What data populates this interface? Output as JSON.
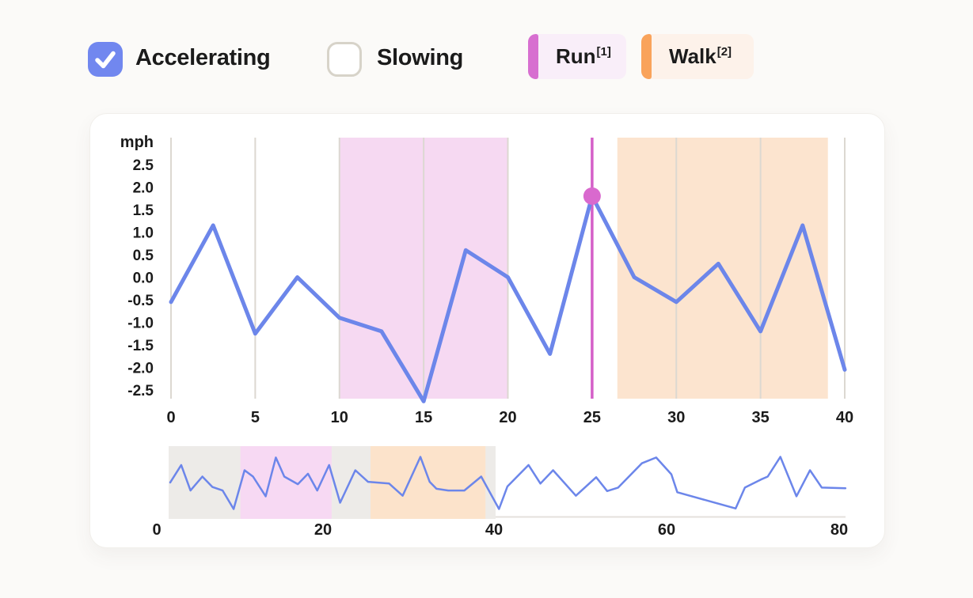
{
  "controls": {
    "accelerating": {
      "label": "Accelerating",
      "checked": true
    },
    "slowing": {
      "label": "Slowing",
      "checked": false
    },
    "legend": [
      {
        "label": "Run",
        "sup": "[1]"
      },
      {
        "label": "Walk",
        "sup": "[2]"
      }
    ]
  },
  "colors": {
    "page_bg": "#fbfaf8",
    "card_bg": "#ffffff",
    "text": "#1b1b1b",
    "checkbox_checked": "#7187ef",
    "checkbox_unchecked_border": "#d7d3c9",
    "run_accent": "#d76fd0",
    "run_chip_bg": "#f9eef9",
    "walk_accent": "#f9a35b",
    "walk_chip_bg": "#fdf2ea",
    "line_blue": "#6c86ea",
    "grid": "#dcd8d1",
    "region_run": "#f6d9f2",
    "region_walk": "#fce4cf",
    "highlight_line": "#d45fc8",
    "highlight_dot": "#d969ce",
    "brush_selection": "#edebe8",
    "brush_run": "#f7d9f3",
    "brush_walk": "#fce3cb",
    "brush_axis": "#e4e1dc"
  },
  "chart_data": [
    {
      "id": "main-speed-chart",
      "type": "line",
      "title": "",
      "xlabel": "",
      "ylabel": "mph",
      "x": [
        0,
        2.5,
        5,
        7.5,
        10,
        12.5,
        15,
        17.5,
        20,
        22.5,
        25,
        27.5,
        30,
        32.5,
        35,
        37.5,
        40
      ],
      "values": [
        -0.55,
        1.15,
        -1.25,
        0.0,
        -0.9,
        -1.2,
        -2.75,
        0.6,
        0.0,
        -1.7,
        1.8,
        0.0,
        -0.55,
        0.3,
        -1.2,
        1.15,
        -2.05
      ],
      "xticks": [
        0,
        5,
        10,
        15,
        20,
        25,
        30,
        35,
        40
      ],
      "yticks": [
        2.5,
        2.0,
        1.5,
        1.0,
        0.5,
        0.0,
        -0.5,
        -1.0,
        -1.5,
        -2.0,
        -2.5
      ],
      "xlim": [
        0,
        40
      ],
      "ylim": [
        -2.9,
        3.1
      ],
      "grid": "vertical-only",
      "line_color": "#6c86ea",
      "regions": [
        {
          "label": "Run",
          "from": 10,
          "to": 20,
          "color": "#f6d9f2"
        },
        {
          "label": "Walk",
          "from": 26.5,
          "to": 39,
          "color": "#fce4cf"
        }
      ],
      "highlight": {
        "x": 25,
        "y": 1.8,
        "dot_color": "#d969ce",
        "line_color": "#d45fc8"
      }
    },
    {
      "id": "overview-brush-chart",
      "type": "line",
      "role": "brush-overview",
      "xticks": [
        0,
        20,
        40,
        60,
        80
      ],
      "xlim": [
        0,
        80
      ],
      "line_color": "#6c86ea",
      "selection": {
        "from": 0,
        "to": 38.5
      },
      "regions": [
        {
          "label": "Run",
          "from": 8.3,
          "to": 19.1,
          "color": "#f7d9f3"
        },
        {
          "label": "Walk",
          "from": 23.7,
          "to": 37.3,
          "color": "#fce3cb"
        }
      ],
      "points": [
        [
          0,
          -0.4
        ],
        [
          1.3,
          1.1
        ],
        [
          2.4,
          -1.1
        ],
        [
          3.8,
          0.1
        ],
        [
          5,
          -0.8
        ],
        [
          6.2,
          -1.1
        ],
        [
          7.5,
          -2.7
        ],
        [
          8.8,
          0.65
        ],
        [
          9.8,
          0.1
        ],
        [
          11.3,
          -1.6
        ],
        [
          12.5,
          1.75
        ],
        [
          13.5,
          0.1
        ],
        [
          15.1,
          -0.55
        ],
        [
          16.3,
          0.35
        ],
        [
          17.4,
          -1.1
        ],
        [
          18.8,
          1.1
        ],
        [
          20.1,
          -2.15
        ],
        [
          21.9,
          0.65
        ],
        [
          23.4,
          -0.35
        ],
        [
          25.9,
          -0.5
        ],
        [
          27.5,
          -1.55
        ],
        [
          29.6,
          1.8
        ],
        [
          30.7,
          -0.35
        ],
        [
          31.5,
          -0.95
        ],
        [
          32.9,
          -1.1
        ],
        [
          34.8,
          -1.1
        ],
        [
          36.8,
          0.1
        ],
        [
          38.9,
          -2.7
        ],
        [
          39.9,
          -0.75
        ],
        [
          42.4,
          1.1
        ],
        [
          43.8,
          -0.5
        ],
        [
          45.3,
          0.65
        ],
        [
          48,
          -1.55
        ],
        [
          50.4,
          0.05
        ],
        [
          51.7,
          -1.15
        ],
        [
          53,
          -0.85
        ],
        [
          55.8,
          1.25
        ],
        [
          57.5,
          1.75
        ],
        [
          59.3,
          0.3
        ],
        [
          60,
          -1.25
        ],
        [
          66.9,
          -2.65
        ],
        [
          68,
          -0.85
        ],
        [
          69.9,
          -0.15
        ],
        [
          70.7,
          0.1
        ],
        [
          72.2,
          1.8
        ],
        [
          74.1,
          -1.6
        ],
        [
          75.7,
          0.65
        ],
        [
          77.1,
          -0.85
        ],
        [
          79.9,
          -0.9
        ]
      ]
    }
  ]
}
